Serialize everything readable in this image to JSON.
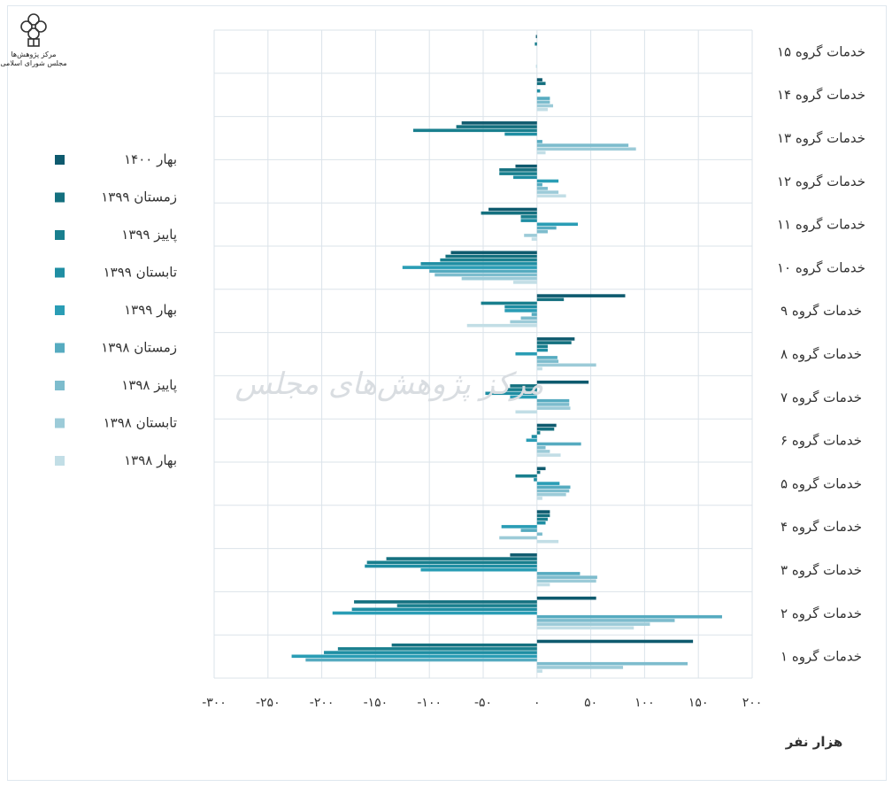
{
  "logo": {
    "line1": "مرکز پژوهش‌ها",
    "line2": "مجلس شورای اسلامی"
  },
  "watermark": "مرکز پژوهش‌های مجلس",
  "colors": {
    "gridline": "#dbe3ea",
    "text": "#333333"
  },
  "chart_data": {
    "type": "bar",
    "orientation": "horizontal",
    "categories": [
      "خدمات گروه ۱",
      "خدمات گروه ۲",
      "خدمات گروه ۳",
      "خدمات گروه ۴",
      "خدمات گروه ۵",
      "خدمات گروه ۶",
      "خدمات گروه ۷",
      "خدمات گروه ۸",
      "خدمات گروه ۹",
      "خدمات گروه ۱۰",
      "خدمات گروه ۱۱",
      "خدمات گروه ۱۲",
      "خدمات گروه ۱۳",
      "خدمات گروه ۱۴",
      "خدمات گروه ۱۵"
    ],
    "xlabel": "هزار نفر",
    "xlim": [
      -300,
      200
    ],
    "xticks": [
      -300,
      -250,
      -200,
      -150,
      -100,
      -50,
      0,
      50,
      100,
      150,
      200
    ],
    "xtick_labels": [
      "-۳۰۰",
      "-۲۵۰",
      "-۲۰۰",
      "-۱۵۰",
      "-۱۰۰",
      "-۵۰",
      "۰",
      "۵۰",
      "۱۰۰",
      "۱۵۰",
      "۲۰۰"
    ],
    "grid": true,
    "legend_position": "left",
    "series": [
      {
        "name": "بهار ۱۴۰۰",
        "color": "#0e5a6e",
        "values": [
          145,
          55,
          -25,
          12,
          8,
          18,
          48,
          35,
          82,
          -80,
          -45,
          -20,
          -70,
          5,
          -1
        ]
      },
      {
        "name": "زمستان ۱۳۹۹",
        "color": "#14707f",
        "values": [
          -135,
          -170,
          -140,
          12,
          3,
          16,
          -25,
          32,
          25,
          -85,
          -52,
          -35,
          -75,
          8,
          0
        ]
      },
      {
        "name": "پاییز ۱۳۹۹",
        "color": "#197f8e",
        "values": [
          -185,
          -130,
          -158,
          10,
          -20,
          3,
          -28,
          10,
          -52,
          -90,
          -15,
          -35,
          -115,
          0,
          -2
        ]
      },
      {
        "name": "تابستان ۱۳۹۹",
        "color": "#1f8ea3",
        "values": [
          -198,
          -172,
          -160,
          8,
          -3,
          -5,
          -48,
          10,
          -30,
          -108,
          -15,
          -22,
          -30,
          3,
          0
        ]
      },
      {
        "name": "بهار ۱۳۹۹",
        "color": "#2a9db5",
        "values": [
          -228,
          -190,
          -108,
          -33,
          21,
          -10,
          -25,
          -20,
          -30,
          -125,
          38,
          20,
          0,
          0,
          0
        ]
      },
      {
        "name": "زمستان ۱۳۹۸",
        "color": "#56abc0",
        "values": [
          -215,
          172,
          40,
          -15,
          31,
          41,
          30,
          19,
          -5,
          -100,
          18,
          5,
          5,
          12,
          0
        ]
      },
      {
        "name": "پاییز ۱۳۹۸",
        "color": "#7dbccd",
        "values": [
          140,
          128,
          56,
          5,
          30,
          8,
          30,
          20,
          -15,
          -95,
          10,
          10,
          85,
          12,
          0
        ]
      },
      {
        "name": "تابستان ۱۳۹۸",
        "color": "#9ccbd8",
        "values": [
          80,
          105,
          55,
          -35,
          27,
          12,
          31,
          55,
          -25,
          -70,
          -12,
          20,
          92,
          15,
          0
        ]
      },
      {
        "name": "بهار ۱۳۹۸",
        "color": "#c2dee6",
        "values": [
          5,
          90,
          12,
          20,
          5,
          22,
          -20,
          5,
          -65,
          -22,
          -5,
          27,
          8,
          10,
          -1
        ]
      }
    ]
  }
}
